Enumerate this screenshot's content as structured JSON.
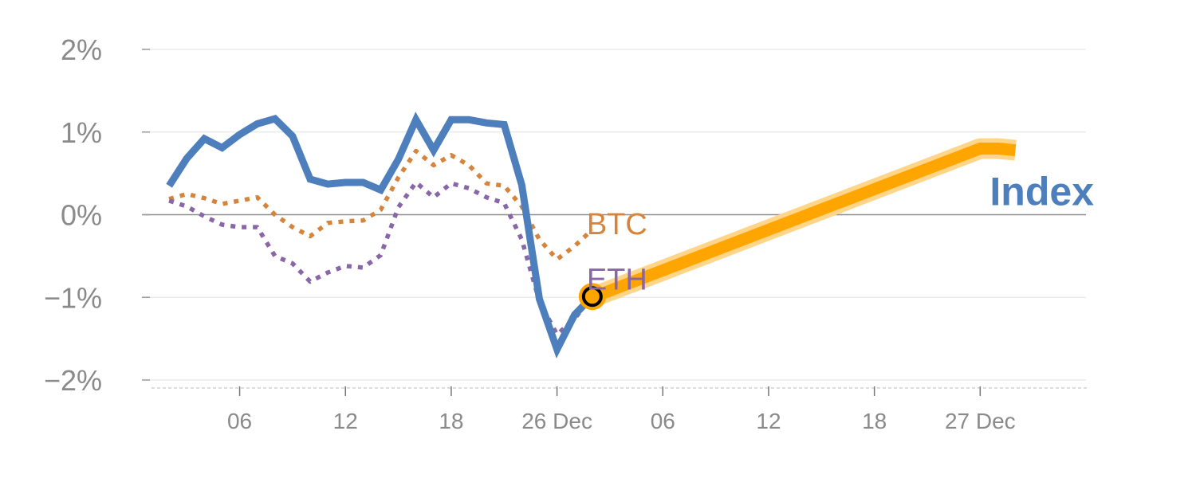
{
  "colors": {
    "index": "#4e7fbd",
    "btc": "#d6843b",
    "eth": "#8866a8",
    "forecast": "#ffa500",
    "forecast_glow": "#ffd58a",
    "grid": "#e6e6e6",
    "zero_line": "#8c8c8c",
    "tick_text": "#8a8a8a",
    "marker_fill": "#ffa500",
    "marker_ring": "#000000"
  },
  "chart_data": {
    "type": "line",
    "title": "",
    "xlabel": "",
    "ylabel": "",
    "ylim": [
      -2,
      2
    ],
    "yticks": [
      {
        "value": 2,
        "label": "2%"
      },
      {
        "value": 1,
        "label": "1%"
      },
      {
        "value": 0,
        "label": "0%"
      },
      {
        "value": -1,
        "label": "−1%"
      },
      {
        "value": -2,
        "label": "−2%"
      }
    ],
    "xlim": [
      0,
      53
    ],
    "xticks": [
      {
        "value": 5,
        "label": "06"
      },
      {
        "value": 11,
        "label": "12"
      },
      {
        "value": 17,
        "label": "18"
      },
      {
        "value": 23,
        "label": "26 Dec"
      },
      {
        "value": 29,
        "label": "06"
      },
      {
        "value": 35,
        "label": "12"
      },
      {
        "value": 41,
        "label": "18"
      },
      {
        "value": 47,
        "label": "27 Dec"
      }
    ],
    "grid": true,
    "series": [
      {
        "name": "Index",
        "style": "solid",
        "x": [
          1,
          2,
          3,
          4,
          5,
          6,
          7,
          8,
          9,
          10,
          11,
          12,
          13,
          14,
          15,
          16,
          17,
          18,
          19,
          20,
          21,
          22,
          23,
          24,
          25
        ],
        "y": [
          0.35,
          0.68,
          0.92,
          0.81,
          0.97,
          1.1,
          1.16,
          0.95,
          0.43,
          0.37,
          0.39,
          0.39,
          0.3,
          0.67,
          1.15,
          0.78,
          1.15,
          1.15,
          1.11,
          1.09,
          0.36,
          -1.02,
          -1.63,
          -1.21,
          -0.99
        ]
      },
      {
        "name": "BTC",
        "style": "dotted",
        "x": [
          1,
          2,
          3,
          4,
          5,
          6,
          7,
          8,
          9,
          10,
          11,
          12,
          13,
          14,
          15,
          16,
          17,
          18,
          19,
          20,
          21,
          22,
          23,
          24,
          25
        ],
        "y": [
          0.19,
          0.25,
          0.2,
          0.13,
          0.17,
          0.21,
          0.0,
          -0.15,
          -0.26,
          -0.1,
          -0.08,
          -0.07,
          0.06,
          0.45,
          0.77,
          0.6,
          0.72,
          0.6,
          0.38,
          0.35,
          0.1,
          -0.3,
          -0.54,
          -0.38,
          -0.18
        ]
      },
      {
        "name": "ETH",
        "style": "dotted",
        "x": [
          1,
          2,
          3,
          4,
          5,
          6,
          7,
          8,
          9,
          10,
          11,
          12,
          13,
          14,
          15,
          16,
          17,
          18,
          19,
          20,
          21,
          22,
          23,
          24,
          25
        ],
        "y": [
          0.17,
          0.1,
          -0.02,
          -0.12,
          -0.15,
          -0.15,
          -0.5,
          -0.59,
          -0.81,
          -0.7,
          -0.62,
          -0.64,
          -0.49,
          0.09,
          0.39,
          0.21,
          0.38,
          0.32,
          0.21,
          0.14,
          -0.3,
          -1.05,
          -1.45,
          -1.26,
          -0.98
        ]
      },
      {
        "name": "forecast",
        "style": "thick",
        "x": [
          25,
          47,
          48,
          49
        ],
        "y": [
          -1.0,
          0.8,
          0.8,
          0.78
        ]
      }
    ],
    "marker": {
      "x": 25,
      "y": -0.99
    },
    "annotations": [
      {
        "text": "BTC",
        "series": "BTC",
        "x": 25,
        "y": -0.08
      },
      {
        "text": "ETH",
        "series": "ETH",
        "x": 25,
        "y": -0.75
      },
      {
        "text": "Index",
        "series": "Index",
        "x": 50.5,
        "y": 0.27
      }
    ]
  }
}
